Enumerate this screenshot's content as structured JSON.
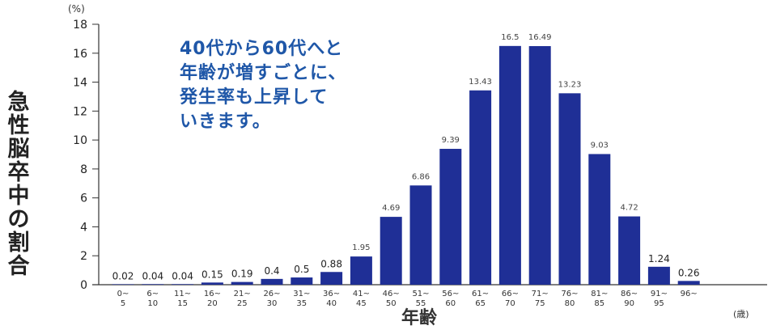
{
  "chart_data": {
    "type": "bar",
    "ylabel": "急性脳卒中の割合",
    "xlabel": "年齢",
    "y_unit": "(%)",
    "x_unit": "(歳)",
    "annotation": [
      "40代から60代へと",
      "年齢が増すごとに、",
      "発生率も上昇して",
      "いきます。"
    ],
    "ylim": [
      0,
      18
    ],
    "yticks": [
      0,
      2,
      4,
      6,
      8,
      10,
      12,
      14,
      16,
      18
    ],
    "grid": false,
    "bar_color": "#1f2f96",
    "categories": [
      [
        "0~",
        "5"
      ],
      [
        "6~",
        "10"
      ],
      [
        "11~",
        "15"
      ],
      [
        "16~",
        "20"
      ],
      [
        "21~",
        "25"
      ],
      [
        "26~",
        "30"
      ],
      [
        "31~",
        "35"
      ],
      [
        "36~",
        "40"
      ],
      [
        "41~",
        "45"
      ],
      [
        "46~",
        "50"
      ],
      [
        "51~",
        "55"
      ],
      [
        "56~",
        "60"
      ],
      [
        "61~",
        "65"
      ],
      [
        "66~",
        "70"
      ],
      [
        "71~",
        "75"
      ],
      [
        "76~",
        "80"
      ],
      [
        "81~",
        "85"
      ],
      [
        "86~",
        "90"
      ],
      [
        "91~",
        "95"
      ],
      [
        "96~",
        ""
      ]
    ],
    "values": [
      0.02,
      0.04,
      0.04,
      0.15,
      0.19,
      0.4,
      0.5,
      0.88,
      1.95,
      4.69,
      6.86,
      9.39,
      13.43,
      16.5,
      16.49,
      13.23,
      9.03,
      4.72,
      1.24,
      0.26
    ]
  }
}
